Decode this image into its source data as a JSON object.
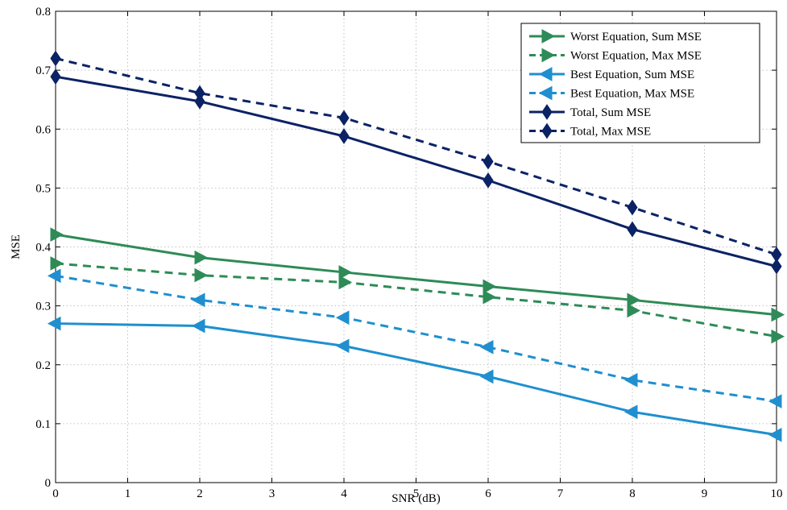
{
  "chart_data": {
    "type": "line",
    "title": "",
    "xlabel": "SNR (dB)",
    "ylabel": "MSE",
    "xlim": [
      0,
      10
    ],
    "ylim": [
      0,
      0.8
    ],
    "xticks": [
      0,
      1,
      2,
      3,
      4,
      5,
      6,
      7,
      8,
      9,
      10
    ],
    "yticks": [
      0,
      0.1,
      0.2,
      0.3,
      0.4,
      0.5,
      0.6,
      0.7,
      0.8
    ],
    "xtick_labels": [
      "0",
      "1",
      "2",
      "3",
      "4",
      "5",
      "6",
      "7",
      "8",
      "9",
      "10"
    ],
    "ytick_labels": [
      "0",
      "0.1",
      "0.2",
      "0.3",
      "0.4",
      "0.5",
      "0.6",
      "0.7",
      "0.8"
    ],
    "grid": true,
    "legend_position": "top-right",
    "x": [
      0,
      2,
      4,
      6,
      8,
      10
    ],
    "series": [
      {
        "name": "Worst Equation, Sum MSE",
        "values": [
          0.421,
          0.382,
          0.357,
          0.333,
          0.31,
          0.285
        ],
        "color": "#2e8b57",
        "dash": "solid",
        "marker": "triangle-right"
      },
      {
        "name": "Worst Equation, Max MSE",
        "values": [
          0.372,
          0.352,
          0.34,
          0.315,
          0.292,
          0.248
        ],
        "color": "#2e8b57",
        "dash": "dashed",
        "marker": "triangle-right"
      },
      {
        "name": "Best Equation, Sum MSE",
        "values": [
          0.27,
          0.266,
          0.232,
          0.18,
          0.12,
          0.081
        ],
        "color": "#1f8fcf",
        "dash": "solid",
        "marker": "triangle-left"
      },
      {
        "name": "Best Equation, Max MSE",
        "values": [
          0.351,
          0.31,
          0.28,
          0.23,
          0.174,
          0.138
        ],
        "color": "#1f8fcf",
        "dash": "dashed",
        "marker": "triangle-left"
      },
      {
        "name": "Total, Sum MSE",
        "values": [
          0.689,
          0.647,
          0.588,
          0.513,
          0.43,
          0.367
        ],
        "color": "#0b2265",
        "dash": "solid",
        "marker": "diamond"
      },
      {
        "name": "Total, Max MSE",
        "values": [
          0.72,
          0.661,
          0.619,
          0.545,
          0.467,
          0.387
        ],
        "color": "#0b2265",
        "dash": "dashed",
        "marker": "diamond"
      }
    ]
  }
}
